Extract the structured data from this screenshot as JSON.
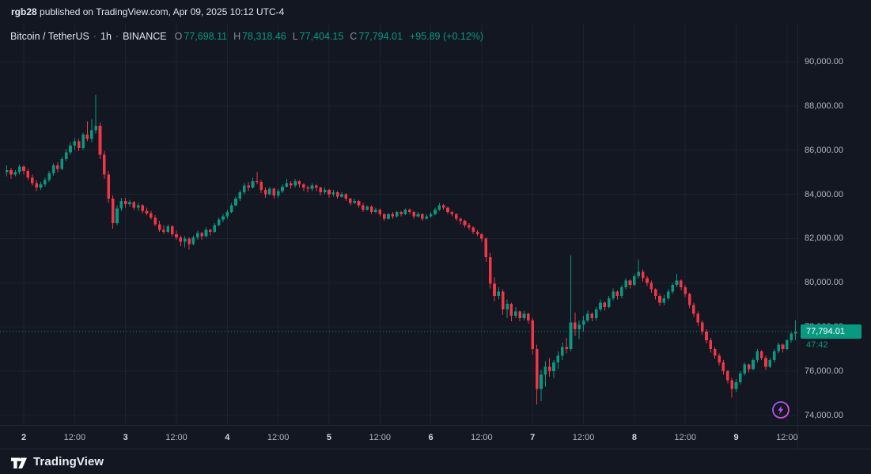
{
  "share_bar": {
    "username": "rgb28",
    "text": " published on TradingView.com, Apr 09, 2025 10:12 UTC-4"
  },
  "legend": {
    "symbol": "Bitcoin / TetherUS",
    "separator": "·",
    "interval": "1h",
    "exchange": "BINANCE",
    "ohlc": [
      {
        "k": "O",
        "v": "77,698.11"
      },
      {
        "k": "H",
        "v": "78,318.46"
      },
      {
        "k": "L",
        "v": "77,404.15"
      },
      {
        "k": "C",
        "v": "77,794.01"
      }
    ],
    "change": "+95.89 (+0.12%)"
  },
  "price_label": {
    "value": "77,794.01",
    "countdown": "47:42"
  },
  "footer": {
    "brand": "TradingView"
  },
  "colors": {
    "background": "#131722",
    "up": "#089981",
    "down": "#f23645",
    "grid": "#1d2230",
    "axis_text": "#b2b5be",
    "price_line": "#089981",
    "boost": "#d23ede"
  },
  "chart_data": {
    "type": "candlestick",
    "title": "Bitcoin / TetherUS 1h BINANCE",
    "interval": "1h",
    "current_price": 77794.01,
    "layout": {
      "x_offset": 8.6,
      "x_spacing": 5.36,
      "grid": true
    },
    "price_axis": {
      "min": 73570,
      "max": 91715,
      "ticks": [
        {
          "value": 90000,
          "label": "90,000.00"
        },
        {
          "value": 88000,
          "label": "88,000.00"
        },
        {
          "value": 86000,
          "label": "86,000.00"
        },
        {
          "value": 84000,
          "label": "84,000.00"
        },
        {
          "value": 82000,
          "label": "82,000.00"
        },
        {
          "value": 80000,
          "label": "80,000.00"
        },
        {
          "value": 78000,
          "label": "78,000.00"
        },
        {
          "value": 76000,
          "label": "76,000.00"
        },
        {
          "value": 74000,
          "label": "74,000.00"
        }
      ]
    },
    "time_axis": {
      "labels": [
        {
          "index": 4,
          "label": "2",
          "major": true
        },
        {
          "index": 16,
          "label": "12:00",
          "major": false
        },
        {
          "index": 28,
          "label": "3",
          "major": true
        },
        {
          "index": 40,
          "label": "12:00",
          "major": false
        },
        {
          "index": 52,
          "label": "4",
          "major": true
        },
        {
          "index": 64,
          "label": "12:00",
          "major": false
        },
        {
          "index": 76,
          "label": "5",
          "major": true
        },
        {
          "index": 88,
          "label": "12:00",
          "major": false
        },
        {
          "index": 100,
          "label": "6",
          "major": true
        },
        {
          "index": 112,
          "label": "12:00",
          "major": false
        },
        {
          "index": 124,
          "label": "7",
          "major": true
        },
        {
          "index": 136,
          "label": "12:00",
          "major": false
        },
        {
          "index": 148,
          "label": "8",
          "major": true
        },
        {
          "index": 160,
          "label": "12:00",
          "major": false
        },
        {
          "index": 172,
          "label": "9",
          "major": true
        },
        {
          "index": 184,
          "label": "12:00",
          "major": false
        }
      ]
    },
    "candles": [
      [
        85000,
        85300,
        84800,
        85100
      ],
      [
        85100,
        85200,
        84700,
        84900
      ],
      [
        84900,
        85100,
        84800,
        85000
      ],
      [
        85000,
        85350,
        84900,
        85250
      ],
      [
        85250,
        85300,
        84900,
        85050
      ],
      [
        85050,
        85150,
        84650,
        84750
      ],
      [
        84750,
        84900,
        84400,
        84500
      ],
      [
        84500,
        84650,
        84150,
        84300
      ],
      [
        84300,
        84550,
        84200,
        84450
      ],
      [
        84450,
        84750,
        84350,
        84650
      ],
      [
        84650,
        85050,
        84550,
        84950
      ],
      [
        84950,
        85400,
        84850,
        85300
      ],
      [
        85300,
        85450,
        85000,
        85150
      ],
      [
        85150,
        85700,
        85100,
        85600
      ],
      [
        85600,
        86050,
        85500,
        85900
      ],
      [
        85900,
        86350,
        85800,
        86200
      ],
      [
        86200,
        86550,
        86000,
        86400
      ],
      [
        86400,
        86500,
        85950,
        86100
      ],
      [
        86100,
        86800,
        86000,
        86700
      ],
      [
        86700,
        87300,
        86400,
        86500
      ],
      [
        86500,
        87400,
        86350,
        86900
      ],
      [
        86900,
        88500,
        86750,
        87100
      ],
      [
        87100,
        87250,
        85600,
        85800
      ],
      [
        85800,
        85950,
        84700,
        84900
      ],
      [
        84900,
        85050,
        83600,
        83800
      ],
      [
        83800,
        83950,
        82450,
        82700
      ],
      [
        82700,
        83500,
        82600,
        83350
      ],
      [
        83350,
        83850,
        83250,
        83700
      ],
      [
        83700,
        83850,
        83400,
        83550
      ],
      [
        83550,
        83750,
        83450,
        83650
      ],
      [
        83650,
        83700,
        83300,
        83400
      ],
      [
        83400,
        83600,
        83250,
        83500
      ],
      [
        83500,
        83550,
        83150,
        83250
      ],
      [
        83250,
        83400,
        83050,
        83150
      ],
      [
        83150,
        83250,
        82850,
        82950
      ],
      [
        82950,
        83050,
        82550,
        82650
      ],
      [
        82650,
        82800,
        82300,
        82400
      ],
      [
        82400,
        82600,
        82200,
        82300
      ],
      [
        82300,
        82650,
        82250,
        82550
      ],
      [
        82550,
        82600,
        82100,
        82200
      ],
      [
        82200,
        82350,
        81950,
        82050
      ],
      [
        82050,
        82150,
        81650,
        81850
      ],
      [
        81850,
        82100,
        81600,
        82000
      ],
      [
        82000,
        82050,
        81500,
        81750
      ],
      [
        81750,
        82150,
        81700,
        82050
      ],
      [
        82050,
        82350,
        81950,
        82250
      ],
      [
        82250,
        82300,
        81950,
        82100
      ],
      [
        82100,
        82500,
        82050,
        82400
      ],
      [
        82400,
        82450,
        82150,
        82300
      ],
      [
        82300,
        82700,
        82250,
        82600
      ],
      [
        82600,
        82950,
        82550,
        82850
      ],
      [
        82850,
        83100,
        82750,
        83000
      ],
      [
        83000,
        83300,
        82900,
        83200
      ],
      [
        83200,
        83600,
        83150,
        83500
      ],
      [
        83500,
        83900,
        83450,
        83800
      ],
      [
        83800,
        84200,
        83700,
        84100
      ],
      [
        84100,
        84500,
        84000,
        84400
      ],
      [
        84400,
        84550,
        84150,
        84300
      ],
      [
        84300,
        84750,
        84250,
        84600
      ],
      [
        84600,
        85000,
        84450,
        84550
      ],
      [
        84550,
        84650,
        84050,
        84200
      ],
      [
        84200,
        84300,
        83850,
        84000
      ],
      [
        84000,
        84350,
        83950,
        84250
      ],
      [
        84250,
        84300,
        83800,
        83950
      ],
      [
        83950,
        84250,
        83850,
        84150
      ],
      [
        84150,
        84450,
        84050,
        84350
      ],
      [
        84350,
        84700,
        84300,
        84500
      ],
      [
        84500,
        84600,
        84250,
        84400
      ],
      [
        84400,
        84700,
        84300,
        84600
      ],
      [
        84600,
        84650,
        84300,
        84450
      ],
      [
        84450,
        84500,
        84150,
        84300
      ],
      [
        84300,
        84400,
        84100,
        84250
      ],
      [
        84250,
        84500,
        84150,
        84400
      ],
      [
        84400,
        84450,
        84150,
        84300
      ],
      [
        84300,
        84350,
        83950,
        84100
      ],
      [
        84100,
        84300,
        84000,
        84200
      ],
      [
        84200,
        84250,
        83850,
        84000
      ],
      [
        84000,
        84200,
        83900,
        84100
      ],
      [
        84100,
        84150,
        83800,
        83900
      ],
      [
        83900,
        84100,
        83850,
        84000
      ],
      [
        84000,
        84050,
        83700,
        83800
      ],
      [
        83800,
        83850,
        83500,
        83600
      ],
      [
        83600,
        83800,
        83550,
        83700
      ],
      [
        83700,
        83750,
        83400,
        83500
      ],
      [
        83500,
        83600,
        83200,
        83300
      ],
      [
        83300,
        83500,
        83250,
        83450
      ],
      [
        83450,
        83500,
        83100,
        83200
      ],
      [
        83200,
        83400,
        83150,
        83300
      ],
      [
        83300,
        83350,
        83000,
        83100
      ],
      [
        83100,
        83150,
        82800,
        82900
      ],
      [
        82900,
        83150,
        82850,
        83100
      ],
      [
        83100,
        83200,
        82900,
        83000
      ],
      [
        83000,
        83250,
        82950,
        83200
      ],
      [
        83200,
        83250,
        83000,
        83100
      ],
      [
        83100,
        83350,
        83050,
        83300
      ],
      [
        83300,
        83350,
        83100,
        83200
      ],
      [
        83200,
        83250,
        82900,
        83000
      ],
      [
        83000,
        83200,
        82950,
        83100
      ],
      [
        83100,
        83150,
        82800,
        82900
      ],
      [
        82900,
        83100,
        82850,
        83000
      ],
      [
        83000,
        83200,
        82950,
        83100
      ],
      [
        83100,
        83400,
        83050,
        83300
      ],
      [
        83300,
        83600,
        83250,
        83500
      ],
      [
        83500,
        83550,
        83300,
        83400
      ],
      [
        83400,
        83450,
        83100,
        83200
      ],
      [
        83200,
        83250,
        83000,
        83100
      ],
      [
        83100,
        83150,
        82800,
        82900
      ],
      [
        82900,
        82950,
        82650,
        82800
      ],
      [
        82800,
        82850,
        82500,
        82600
      ],
      [
        82600,
        82700,
        82400,
        82500
      ],
      [
        82500,
        82550,
        82200,
        82300
      ],
      [
        82300,
        82400,
        82100,
        82200
      ],
      [
        82200,
        82250,
        81850,
        82000
      ],
      [
        82000,
        82050,
        80950,
        81150
      ],
      [
        81150,
        81350,
        79750,
        79950
      ],
      [
        79950,
        80250,
        79150,
        79400
      ],
      [
        79400,
        79800,
        79250,
        79600
      ],
      [
        79600,
        79700,
        78550,
        78800
      ],
      [
        78800,
        79250,
        78400,
        79050
      ],
      [
        79050,
        79100,
        78250,
        78500
      ],
      [
        78500,
        78900,
        78400,
        78700
      ],
      [
        78700,
        78750,
        78250,
        78400
      ],
      [
        78400,
        78750,
        78300,
        78600
      ],
      [
        78600,
        78650,
        78150,
        78300
      ],
      [
        78300,
        78400,
        76750,
        77000
      ],
      [
        77000,
        77200,
        74500,
        75200
      ],
      [
        75200,
        76050,
        74650,
        75850
      ],
      [
        75850,
        76450,
        75300,
        76200
      ],
      [
        76200,
        76600,
        75750,
        76000
      ],
      [
        76000,
        76500,
        75700,
        76400
      ],
      [
        76400,
        76900,
        76100,
        76700
      ],
      [
        76700,
        77300,
        76500,
        77100
      ],
      [
        77100,
        77500,
        76800,
        77000
      ],
      [
        77000,
        81250,
        76900,
        78200
      ],
      [
        78200,
        78650,
        77600,
        77900
      ],
      [
        77900,
        78300,
        77450,
        78100
      ],
      [
        78100,
        78500,
        77800,
        78300
      ],
      [
        78300,
        78750,
        78200,
        78600
      ],
      [
        78600,
        78650,
        78250,
        78400
      ],
      [
        78400,
        78900,
        78300,
        78800
      ],
      [
        78800,
        79250,
        78700,
        79100
      ],
      [
        79100,
        79150,
        78750,
        78900
      ],
      [
        78900,
        79400,
        78850,
        79300
      ],
      [
        79300,
        79750,
        79200,
        79600
      ],
      [
        79600,
        79650,
        79250,
        79400
      ],
      [
        79400,
        79900,
        79300,
        79800
      ],
      [
        79800,
        80200,
        79700,
        80100
      ],
      [
        80100,
        80150,
        79750,
        79900
      ],
      [
        79900,
        80400,
        79850,
        80300
      ],
      [
        80300,
        81050,
        80200,
        80500
      ],
      [
        80500,
        80600,
        80050,
        80200
      ],
      [
        80200,
        80300,
        79850,
        80000
      ],
      [
        80000,
        80100,
        79550,
        79700
      ],
      [
        79700,
        79750,
        79250,
        79400
      ],
      [
        79400,
        79500,
        78950,
        79100
      ],
      [
        79100,
        79450,
        79000,
        79300
      ],
      [
        79300,
        79700,
        79200,
        79600
      ],
      [
        79600,
        80000,
        79500,
        79900
      ],
      [
        79900,
        80400,
        79800,
        80100
      ],
      [
        80100,
        80150,
        79650,
        79800
      ],
      [
        79800,
        79900,
        79350,
        79500
      ],
      [
        79500,
        79550,
        78850,
        79000
      ],
      [
        79000,
        79100,
        78450,
        78600
      ],
      [
        78600,
        78700,
        78050,
        78200
      ],
      [
        78200,
        78300,
        77650,
        77800
      ],
      [
        77800,
        77900,
        77250,
        77400
      ],
      [
        77400,
        77500,
        76850,
        77000
      ],
      [
        77000,
        77100,
        76550,
        76700
      ],
      [
        76700,
        76800,
        76250,
        76400
      ],
      [
        76400,
        76500,
        75850,
        76000
      ],
      [
        76000,
        76050,
        75450,
        75600
      ],
      [
        75600,
        75700,
        74800,
        75200
      ],
      [
        75200,
        75650,
        75050,
        75500
      ],
      [
        75500,
        76000,
        75400,
        75900
      ],
      [
        75900,
        76400,
        75800,
        76300
      ],
      [
        76300,
        76350,
        75950,
        76100
      ],
      [
        76100,
        76600,
        76050,
        76500
      ],
      [
        76500,
        77000,
        76400,
        76900
      ],
      [
        76900,
        76950,
        76500,
        76600
      ],
      [
        76600,
        76700,
        76050,
        76200
      ],
      [
        76200,
        76600,
        76150,
        76500
      ],
      [
        76500,
        77000,
        76400,
        76900
      ],
      [
        76900,
        77300,
        76800,
        77200
      ],
      [
        77200,
        77250,
        76850,
        77000
      ],
      [
        77000,
        77450,
        76950,
        77400
      ],
      [
        77400,
        77750,
        77300,
        77698
      ],
      [
        77698.11,
        78318.46,
        77404.15,
        77794.01
      ]
    ]
  }
}
